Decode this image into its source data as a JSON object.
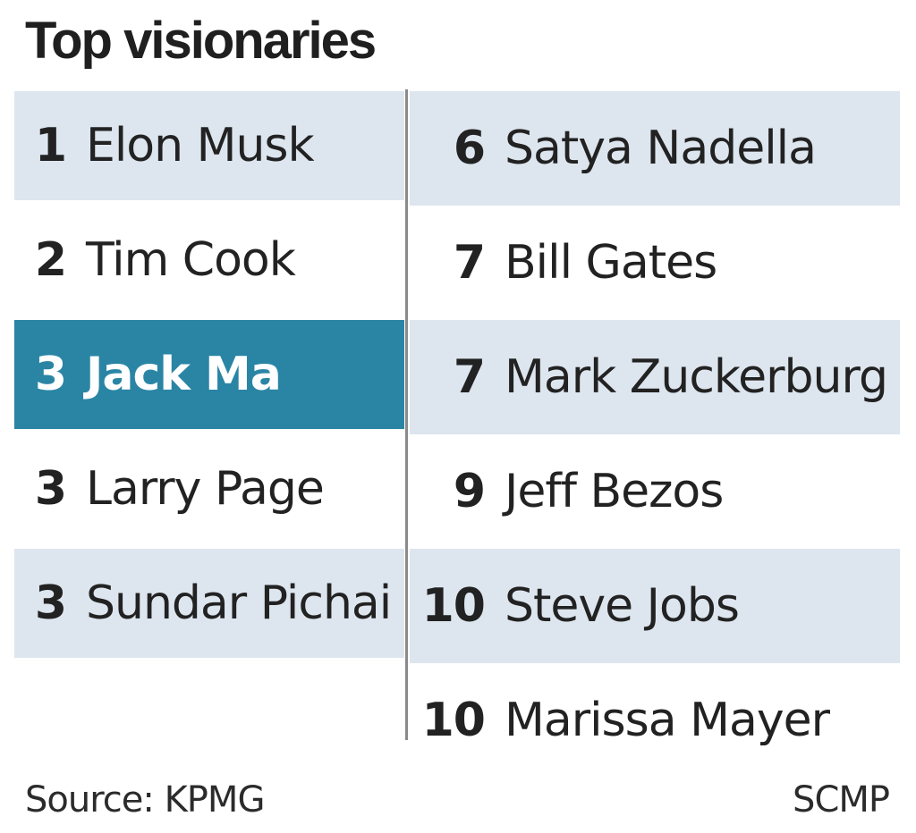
{
  "title": "Top visionaries",
  "left_column": [
    {
      "rank": "1",
      "name": "Elon Musk",
      "style": "shaded"
    },
    {
      "rank": "2",
      "name": "Tim Cook",
      "style": "plain"
    },
    {
      "rank": "3",
      "name": "Jack Ma",
      "style": "highlight"
    },
    {
      "rank": "3",
      "name": "Larry Page",
      "style": "plain"
    },
    {
      "rank": "3",
      "name": "Sundar Pichai",
      "style": "shaded"
    }
  ],
  "right_column": [
    {
      "rank": "6",
      "name": "Satya Nadella",
      "style": "shaded"
    },
    {
      "rank": "7",
      "name": "Bill Gates",
      "style": "plain"
    },
    {
      "rank": "7",
      "name": "Mark Zuckerburg",
      "style": "shaded"
    },
    {
      "rank": "9",
      "name": "Jeff Bezos",
      "style": "plain"
    },
    {
      "rank": "10",
      "name": "Steve Jobs",
      "style": "shaded"
    },
    {
      "rank": "10",
      "name": "Marissa Mayer",
      "style": "plain"
    }
  ],
  "footer": {
    "source": "Source: KPMG",
    "credit": "SCMP"
  },
  "colors": {
    "highlight": "#2a85a5",
    "shaded": "#dde6ef"
  }
}
